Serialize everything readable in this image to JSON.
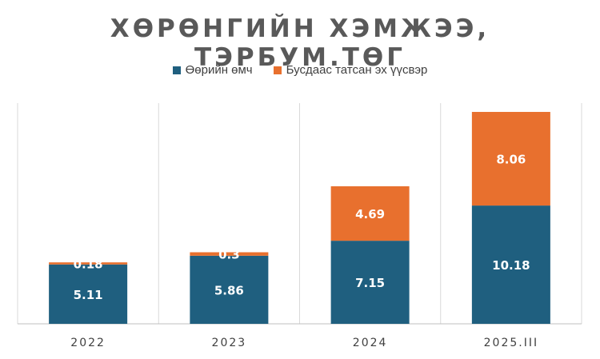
{
  "chart_data": {
    "type": "bar",
    "stacked": true,
    "title": "ХӨРӨНГИЙН ХЭМЖЭЭ, ТЭРБУМ.ТӨГ",
    "categories": [
      "2022",
      "2023",
      "2024",
      "2025.III"
    ],
    "series": [
      {
        "name": "Өөрийн өмч",
        "color": "#1F5F7F",
        "values": [
          5.11,
          5.86,
          7.15,
          10.18
        ],
        "labels": [
          "5.11",
          "5.86",
          "7.15",
          "10.18"
        ]
      },
      {
        "name": "Бусдаас татсан эх үүсвэр",
        "color": "#E8702E",
        "values": [
          0.18,
          0.3,
          4.69,
          8.06
        ],
        "labels": [
          "0.18",
          "0.3",
          "4.69",
          "8.06"
        ]
      }
    ],
    "ylim": [
      0,
      18.9
    ],
    "legend": "top",
    "grid": "vertical category separators"
  }
}
